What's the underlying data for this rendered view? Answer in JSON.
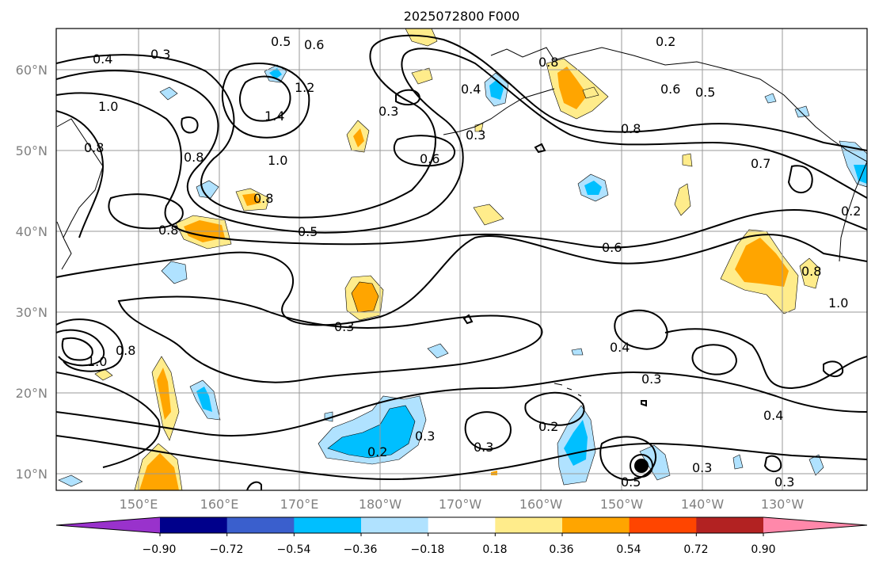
{
  "map": {
    "title": "2025072800 F000",
    "lat_labels": [
      "60°N",
      "50°N",
      "40°N",
      "30°N",
      "20°N",
      "10°N"
    ],
    "lon_labels": [
      "150°E",
      "160°E",
      "170°E",
      "180°W",
      "170°W",
      "160°W",
      "150°W",
      "140°W",
      "130°W"
    ],
    "contour_labels": [
      "0.4",
      "0.3",
      "0.5",
      "0.6",
      "1.2",
      "1.4",
      "1.0",
      "0.8",
      "0.3",
      "0.4",
      "0.8",
      "0.6",
      "0.2",
      "0.6",
      "0.5",
      "0.8",
      "0.7",
      "0.8",
      "0.5",
      "0.8",
      "0.6",
      "0.3",
      "0.4",
      "0.3",
      "0.4",
      "0.2",
      "0.3",
      "0.2",
      "0.3",
      "0.3",
      "0.3",
      "0.3",
      "1.0",
      "0.8",
      "0.2",
      "0.8",
      "1.0",
      "0.8",
      "0.5",
      "1.0"
    ]
  },
  "colorbar": {
    "tick_labels": [
      "−0.90",
      "−0.72",
      "−0.54",
      "−0.36",
      "−0.18",
      "0.18",
      "0.36",
      "0.54",
      "0.72",
      "0.90"
    ],
    "colors": [
      "#9932cc",
      "#00008b",
      "#3a5fcd",
      "#00bfff",
      "#b0e2ff",
      "#ffffff",
      "#ffec8b",
      "#ffa500",
      "#ff4500",
      "#b22222",
      "#ff88aa"
    ]
  }
}
